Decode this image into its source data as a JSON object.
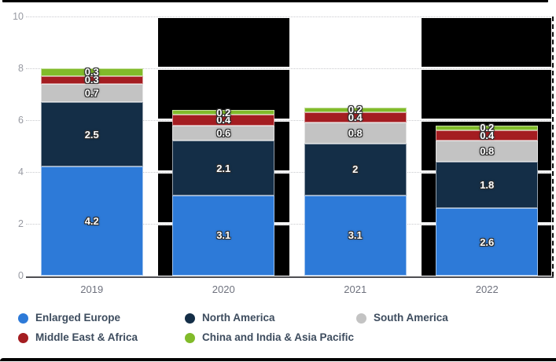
{
  "chart_data": {
    "type": "bar",
    "stacked": true,
    "title": "",
    "categories": [
      "2019",
      "2020",
      "2021",
      "2022"
    ],
    "series": [
      {
        "name": "Enlarged Europe",
        "color": "#2d7ad8",
        "values": [
          4.2,
          3.1,
          3.1,
          2.6
        ],
        "labels": [
          "4.2",
          "3.1",
          "3.1",
          "2.6"
        ]
      },
      {
        "name": "North America",
        "color": "#142e47",
        "values": [
          2.5,
          2.1,
          2,
          1.8
        ],
        "labels": [
          "2.5",
          "2.1",
          "2",
          "1.8"
        ]
      },
      {
        "name": "South America",
        "color": "#c3c3c3",
        "values": [
          0.7,
          0.6,
          0.8,
          0.8
        ],
        "labels": [
          "0.7",
          "0.6",
          "0.8",
          "0.8"
        ]
      },
      {
        "name": "Middle East & Africa",
        "color": "#a41d21",
        "values": [
          0.3,
          0.4,
          0.4,
          0.4
        ],
        "labels": [
          "0.3",
          "0.4",
          "0.4",
          "0.4"
        ]
      },
      {
        "name": "China and India & Asia Pacific",
        "color": "#81bb2a",
        "values": [
          0.3,
          0.2,
          0.2,
          0.2
        ],
        "labels": [
          "0.3",
          "0.2",
          "0.2",
          "0.2"
        ]
      }
    ],
    "xlabel": "",
    "ylabel": "",
    "ylim": [
      0,
      10
    ],
    "y_ticks": [
      0,
      2,
      4,
      6,
      8,
      10
    ],
    "grid": "horizontal-dotted",
    "legend_position": "bottom",
    "value_label_color": "#ffffff",
    "redacted_columns": [
      "2020",
      "2022"
    ],
    "redaction_color": "#000000",
    "axis_line_color": "#4e4e52",
    "tick_label_color": "#989aa2",
    "category_label_color": "#6f727e",
    "legend_text_color": "#3d4c5e"
  }
}
